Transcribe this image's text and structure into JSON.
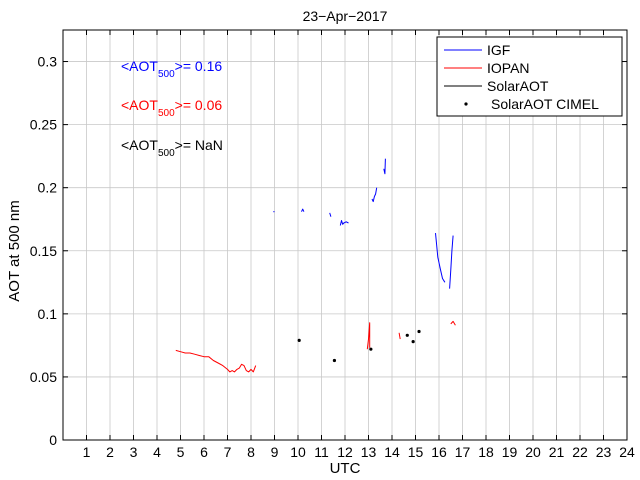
{
  "chart_data": {
    "type": "line",
    "title": "23−Apr−2017",
    "xlabel": "UTC",
    "ylabel": "AOT at 500 nm",
    "xlim": [
      0,
      24
    ],
    "ylim": [
      0,
      0.325
    ],
    "xticks": [
      1,
      2,
      3,
      4,
      5,
      6,
      7,
      8,
      9,
      10,
      11,
      12,
      13,
      14,
      15,
      16,
      17,
      18,
      19,
      20,
      21,
      22,
      23,
      24
    ],
    "yticks": [
      0,
      0.05,
      0.1,
      0.15,
      0.2,
      0.25,
      0.3
    ],
    "ytick_labels": [
      "0",
      "0.05",
      "0.1",
      "0.15",
      "0.2",
      "0.25",
      "0.3"
    ],
    "grid": true,
    "legend_position": "top-right",
    "legend": [
      {
        "label": "IGF",
        "color": "#0000ff",
        "style": "line"
      },
      {
        "label": "IOPAN",
        "color": "#ff0000",
        "style": "line"
      },
      {
        "label": "SolarAOT",
        "color": "#000000",
        "style": "line"
      },
      {
        "label": "SolarAOT CIMEL",
        "color": "#000000",
        "style": "marker"
      }
    ],
    "annotations": [
      {
        "prefix": "<AOT",
        "sub": "500",
        "suffix": ">= 0.16",
        "color": "#0000ff"
      },
      {
        "prefix": "<AOT",
        "sub": "500",
        "suffix": ">= 0.06",
        "color": "#ff0000"
      },
      {
        "prefix": "<AOT",
        "sub": "500",
        "suffix": ">=  NaN",
        "color": "#000000"
      }
    ],
    "series": [
      {
        "name": "IGF",
        "color": "#0000ff",
        "type": "line",
        "segments": [
          [
            [
              8.95,
              0.181
            ],
            [
              9.0,
              0.181
            ]
          ],
          [
            [
              10.15,
              0.181
            ],
            [
              10.2,
              0.183
            ],
            [
              10.25,
              0.181
            ]
          ],
          [
            [
              11.35,
              0.18
            ],
            [
              11.4,
              0.177
            ]
          ],
          [
            [
              11.8,
              0.17
            ],
            [
              11.85,
              0.174
            ],
            [
              11.9,
              0.171
            ],
            [
              11.95,
              0.172
            ],
            [
              12.05,
              0.173
            ],
            [
              12.15,
              0.172
            ]
          ],
          [
            [
              13.15,
              0.191
            ],
            [
              13.2,
              0.189
            ],
            [
              13.25,
              0.193
            ],
            [
              13.3,
              0.195
            ],
            [
              13.35,
              0.2
            ]
          ],
          [
            [
              13.65,
              0.215
            ],
            [
              13.7,
              0.211
            ],
            [
              13.72,
              0.223
            ]
          ],
          [
            [
              15.85,
              0.164
            ],
            [
              15.9,
              0.155
            ],
            [
              15.95,
              0.145
            ],
            [
              16.05,
              0.136
            ],
            [
              16.15,
              0.128
            ],
            [
              16.25,
              0.125
            ]
          ],
          [
            [
              16.45,
              0.12
            ],
            [
              16.5,
              0.135
            ],
            [
              16.55,
              0.15
            ],
            [
              16.6,
              0.162
            ]
          ]
        ]
      },
      {
        "name": "IOPAN",
        "color": "#ff0000",
        "type": "line",
        "segments": [
          [
            [
              4.8,
              0.071
            ],
            [
              5.0,
              0.07
            ],
            [
              5.2,
              0.069
            ],
            [
              5.4,
              0.069
            ],
            [
              5.6,
              0.068
            ],
            [
              5.8,
              0.067
            ],
            [
              6.0,
              0.066
            ],
            [
              6.2,
              0.066
            ],
            [
              6.4,
              0.063
            ],
            [
              6.6,
              0.061
            ],
            [
              6.8,
              0.059
            ],
            [
              7.0,
              0.056
            ],
            [
              7.1,
              0.054
            ],
            [
              7.2,
              0.055
            ],
            [
              7.3,
              0.054
            ],
            [
              7.4,
              0.056
            ],
            [
              7.5,
              0.057
            ],
            [
              7.6,
              0.06
            ],
            [
              7.7,
              0.059
            ],
            [
              7.8,
              0.055
            ],
            [
              7.9,
              0.054
            ],
            [
              8.0,
              0.056
            ],
            [
              8.1,
              0.054
            ],
            [
              8.2,
              0.059
            ]
          ],
          [
            [
              12.95,
              0.072
            ],
            [
              13.0,
              0.08
            ],
            [
              13.05,
              0.093
            ],
            [
              13.05,
              0.073
            ]
          ],
          [
            [
              14.3,
              0.085
            ],
            [
              14.35,
              0.08
            ]
          ],
          [
            [
              16.5,
              0.092
            ],
            [
              16.6,
              0.094
            ],
            [
              16.7,
              0.091
            ]
          ]
        ]
      },
      {
        "name": "SolarAOT",
        "color": "#000000",
        "type": "line",
        "segments": []
      },
      {
        "name": "SolarAOT CIMEL",
        "color": "#000000",
        "type": "scatter",
        "points": [
          [
            10.05,
            0.079
          ],
          [
            11.55,
            0.063
          ],
          [
            13.1,
            0.072
          ],
          [
            14.65,
            0.083
          ],
          [
            14.9,
            0.078
          ],
          [
            15.15,
            0.086
          ]
        ]
      }
    ]
  }
}
